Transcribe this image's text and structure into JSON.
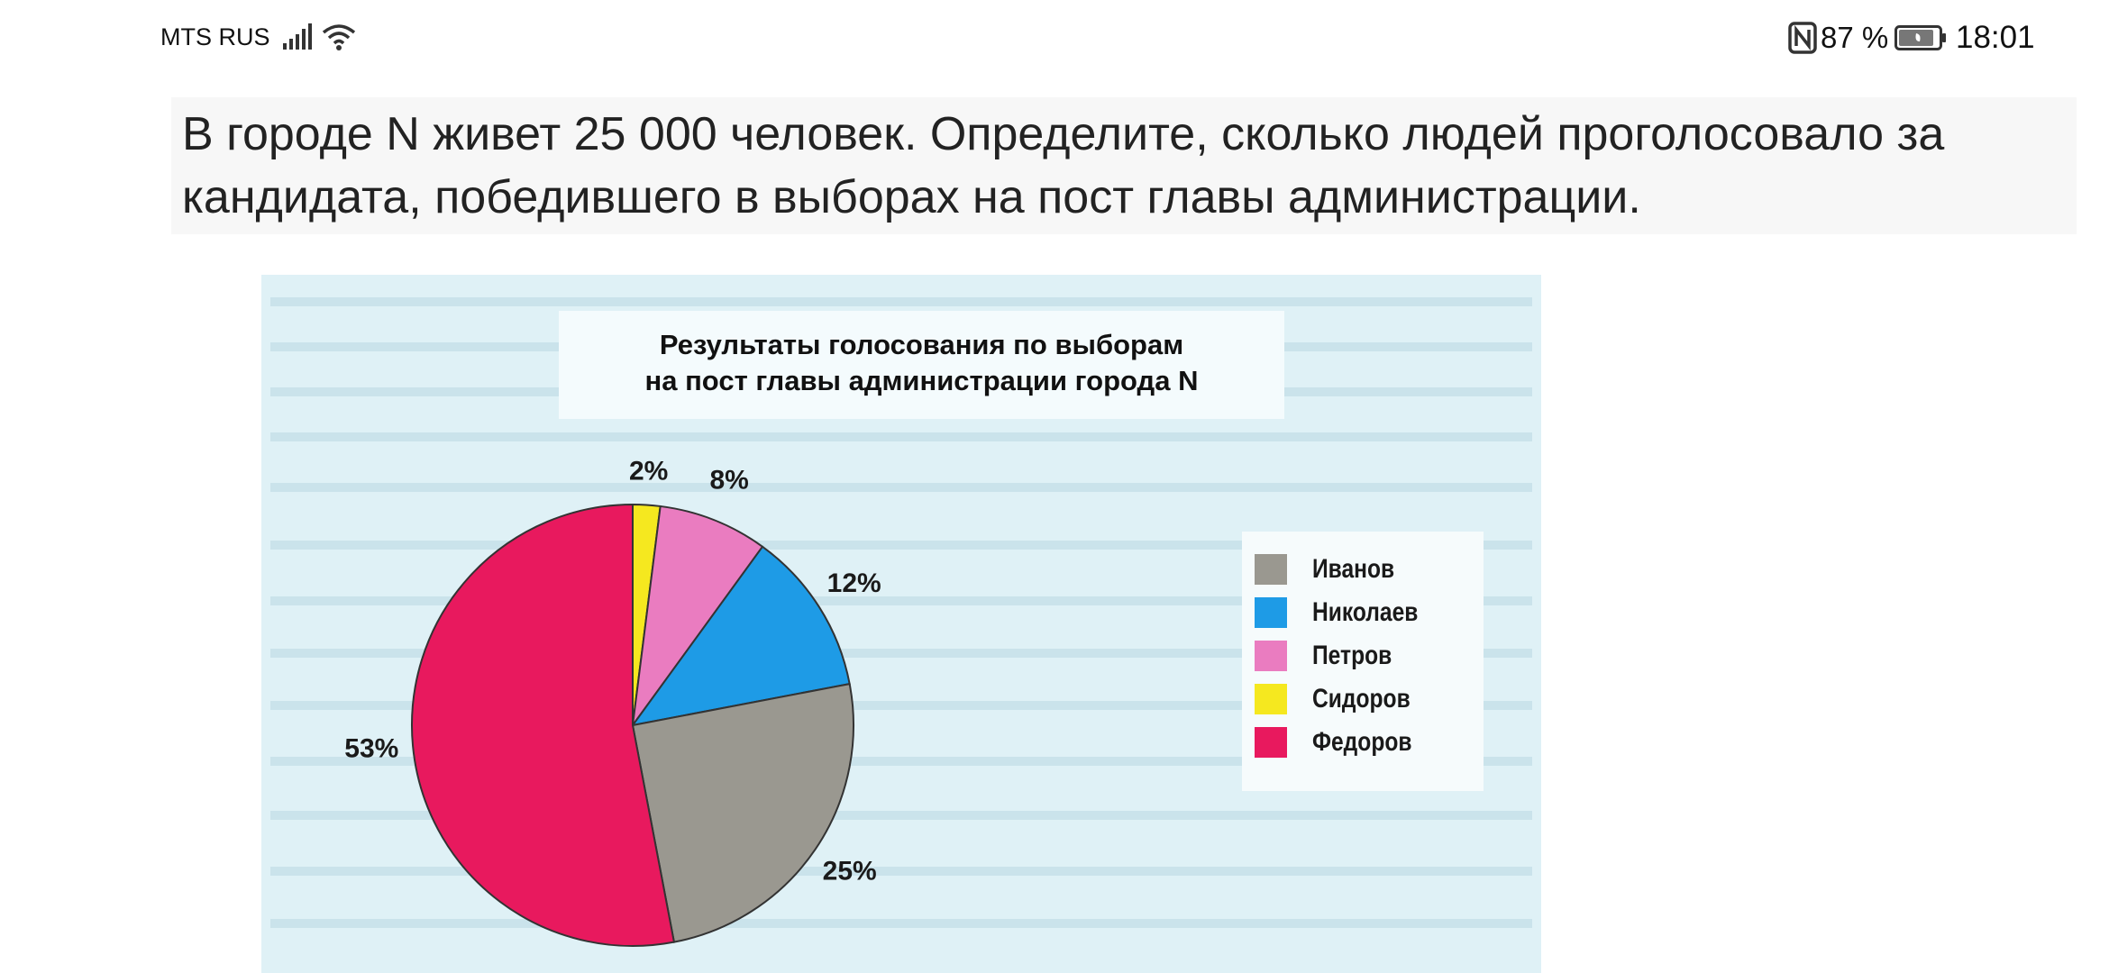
{
  "status_bar": {
    "carrier": "MTS RUS",
    "battery_percent": "87 %",
    "time": "18:01",
    "icons": [
      "signal-icon",
      "wifi-icon",
      "nfc-icon",
      "battery-icon"
    ]
  },
  "question": {
    "text": "В городе N живет 25 000 человек. Определите, сколько людей проголосовало за кандидата, победившего в выборах на пост главы администрации."
  },
  "chart_data": {
    "type": "pie",
    "title_line1": "Результаты голосования по выборам",
    "title_line2": "на пост главы администрации города N",
    "slices": [
      {
        "name": "Сидоров",
        "value": 2,
        "label": "2%",
        "color": "#f5e81f"
      },
      {
        "name": "Петров",
        "value": 8,
        "label": "8%",
        "color": "#ea7cc0"
      },
      {
        "name": "Николаев",
        "value": 12,
        "label": "12%",
        "color": "#1e9be6"
      },
      {
        "name": "Иванов",
        "value": 25,
        "label": "25%",
        "color": "#9a9890"
      },
      {
        "name": "Федоров",
        "value": 53,
        "label": "53%",
        "color": "#e8195e"
      }
    ],
    "legend_order": [
      "Иванов",
      "Николаев",
      "Петров",
      "Сидоров",
      "Федоров"
    ],
    "legend_placement": "right"
  }
}
